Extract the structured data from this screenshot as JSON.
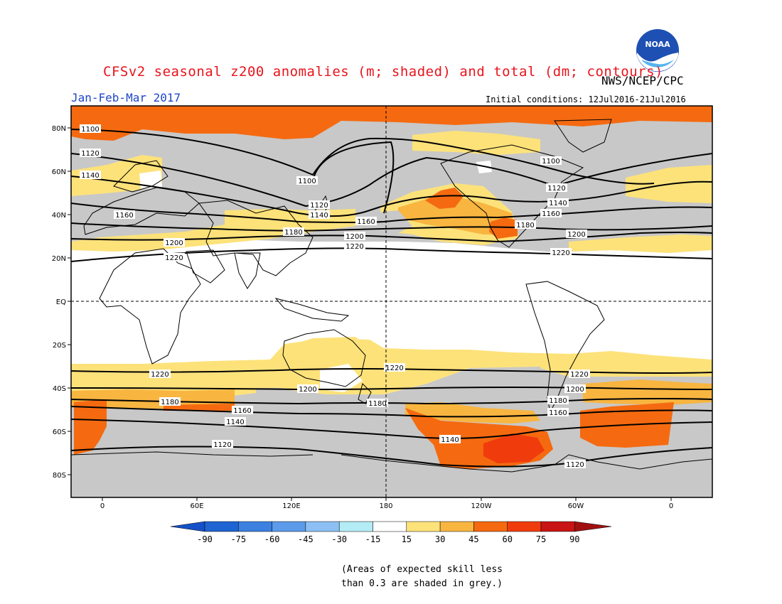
{
  "title": "CFSv2 seasonal z200 anomalies (m; shaded) and total (dm; contours)",
  "agency": "NWS/NCEP/CPC",
  "logo_text": "NOAA",
  "season": "Jan-Feb-Mar 2017",
  "initial_conditions": "Initial conditions: 12Jul2016-21Jul2016",
  "colors": {
    "grey": "#c8c8c8",
    "light_yellow": "#fde27a",
    "yellow_orange": "#f8b540",
    "orange": "#f56a10",
    "red_orange": "#f03c0c",
    "dark_red": "#c81414",
    "light_blue": "#b4ecf6",
    "blue": "#4c94e4",
    "dark_blue": "#1c6cd4"
  },
  "map": {
    "lat_labels": [
      "80N",
      "60N",
      "40N",
      "20N",
      "EQ",
      "20S",
      "40S",
      "60S",
      "80S"
    ],
    "lon_labels": [
      "0",
      "60E",
      "120E",
      "180",
      "120W",
      "60W",
      "0"
    ],
    "contour_labels": [
      "1100",
      "1120",
      "1140",
      "1160",
      "1180",
      "1200",
      "1220"
    ]
  },
  "colorbar": {
    "labels": [
      "-90",
      "-75",
      "-60",
      "-45",
      "-30",
      "-15",
      "15",
      "30",
      "45",
      "60",
      "75",
      "90"
    ],
    "colors": [
      "#1e64d2",
      "#3c80e0",
      "#5c9aea",
      "#8cc0f4",
      "#b4ecf6",
      "#ffffff",
      "#fde27a",
      "#f8b540",
      "#f56a10",
      "#f03c0c",
      "#c81414"
    ],
    "left_arrow_color": "#1450c8",
    "right_arrow_color": "#a01010"
  },
  "note_lines": [
    "(Areas of expected skill less",
    "than 0.3 are shaded in grey.)"
  ]
}
